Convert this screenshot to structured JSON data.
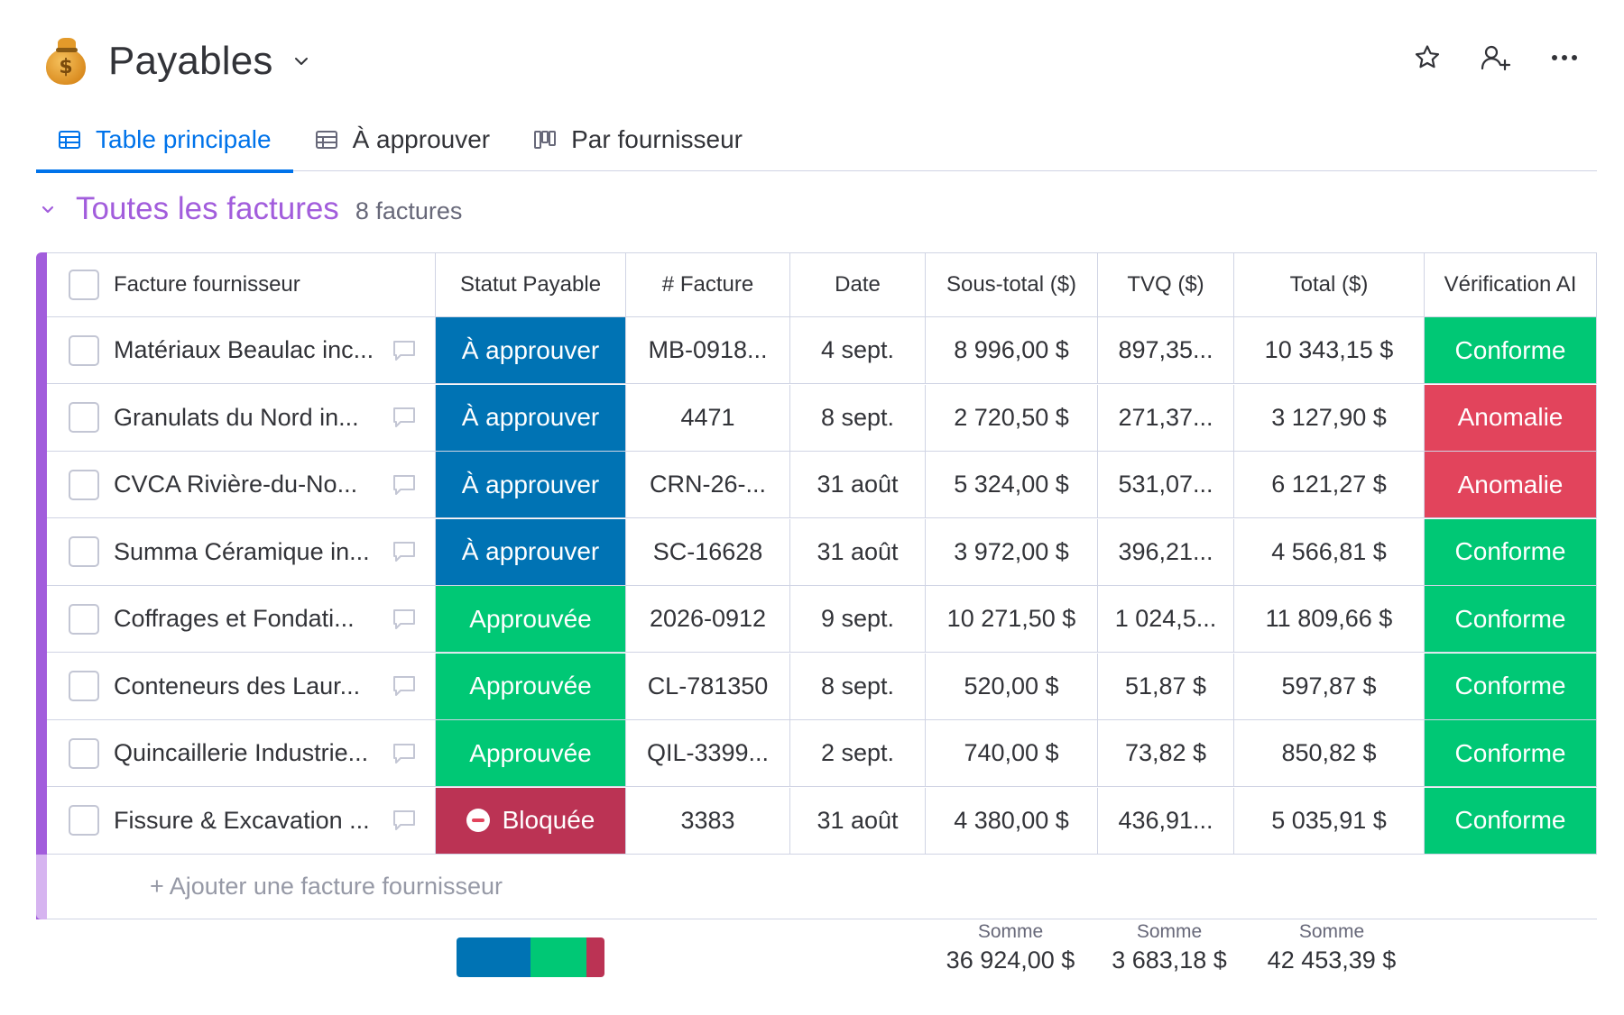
{
  "board": {
    "title": "Payables",
    "icon": "money-bag-icon"
  },
  "header_actions": [
    "star-icon",
    "invite-user-icon",
    "more-icon"
  ],
  "tabs": [
    {
      "label": "Table principale",
      "icon": "table-icon",
      "active": true
    },
    {
      "label": "À approuver",
      "icon": "table-icon",
      "active": false
    },
    {
      "label": "Par fournisseur",
      "icon": "kanban-icon",
      "active": false
    }
  ],
  "group": {
    "title": "Toutes les factures",
    "count": "8 factures",
    "color": "#a25ddc"
  },
  "columns": {
    "name": "Facture fournisseur",
    "status": "Statut Payable",
    "invoice": "# Facture",
    "date": "Date",
    "subtotal": "Sous-total ($)",
    "tvq": "TVQ ($)",
    "total": "Total ($)",
    "verification": "Vérification AI"
  },
  "status_colors": {
    "À approuver": "#0073b4",
    "Approuvée": "#00c875",
    "Bloquée": "#bb3354"
  },
  "verification_colors": {
    "Conforme": "#00c875",
    "Anomalie": "#e2445c"
  },
  "rows": [
    {
      "name": "Matériaux Beaulac inc...",
      "status": "À approuver",
      "invoice": "MB-0918...",
      "date": "4 sept.",
      "subtotal": "8 996,00 $",
      "tvq": "897,35...",
      "total": "10 343,15 $",
      "verification": "Conforme"
    },
    {
      "name": "Granulats du Nord in...",
      "status": "À approuver",
      "invoice": "4471",
      "date": "8 sept.",
      "subtotal": "2 720,50 $",
      "tvq": "271,37...",
      "total": "3 127,90 $",
      "verification": "Anomalie"
    },
    {
      "name": "CVCA Rivière-du-No...",
      "status": "À approuver",
      "invoice": "CRN-26-...",
      "date": "31 août",
      "subtotal": "5 324,00 $",
      "tvq": "531,07...",
      "total": "6 121,27 $",
      "verification": "Anomalie"
    },
    {
      "name": "Summa Céramique in...",
      "status": "À approuver",
      "invoice": "SC-16628",
      "date": "31 août",
      "subtotal": "3 972,00 $",
      "tvq": "396,21...",
      "total": "4 566,81 $",
      "verification": "Conforme"
    },
    {
      "name": "Coffrages et Fondati...",
      "status": "Approuvée",
      "invoice": "2026-0912",
      "date": "9 sept.",
      "subtotal": "10 271,50 $",
      "tvq": "1 024,5...",
      "total": "11 809,66 $",
      "verification": "Conforme"
    },
    {
      "name": "Conteneurs des Laur...",
      "status": "Approuvée",
      "invoice": "CL-781350",
      "date": "8 sept.",
      "subtotal": "520,00 $",
      "tvq": "51,87 $",
      "total": "597,87 $",
      "verification": "Conforme"
    },
    {
      "name": "Quincaillerie Industrie...",
      "status": "Approuvée",
      "invoice": "QIL-3399...",
      "date": "2 sept.",
      "subtotal": "740,00 $",
      "tvq": "73,82 $",
      "total": "850,82 $",
      "verification": "Conforme"
    },
    {
      "name": "Fissure & Excavation ...",
      "status": "Bloquée",
      "invoice": "3383",
      "date": "31 août",
      "subtotal": "4 380,00 $",
      "tvq": "436,91...",
      "total": "5 035,91 $",
      "verification": "Conforme"
    }
  ],
  "add_row_label": "+ Ajouter une facture fournisseur",
  "summary": {
    "status_distribution": [
      {
        "status": "À approuver",
        "fraction": 0.5
      },
      {
        "status": "Approuvée",
        "fraction": 0.375
      },
      {
        "status": "Bloquée",
        "fraction": 0.125
      }
    ],
    "subtotal": {
      "label": "Somme",
      "value": "36 924,00 $"
    },
    "tvq": {
      "label": "Somme",
      "value": "3 683,18 $"
    },
    "total": {
      "label": "Somme",
      "value": "42 453,39 $"
    }
  }
}
